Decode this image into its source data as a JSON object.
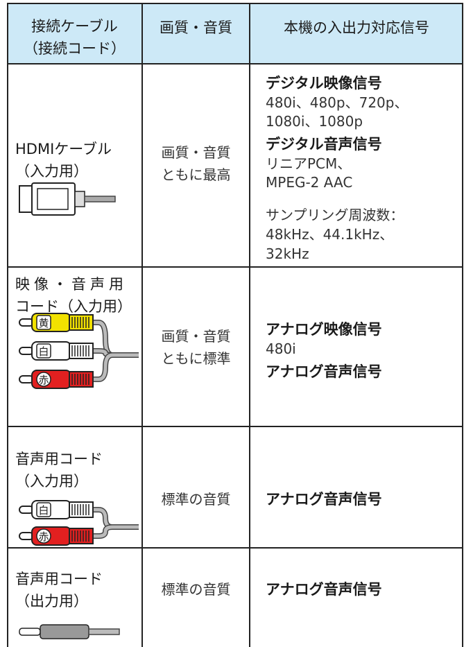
{
  "table": {
    "header": [
      [
        "接続ケーブル",
        "（接続コード）"
      ],
      [
        "画質・音質"
      ],
      [
        "本機の入出力対応信号"
      ]
    ],
    "rows": [
      {
        "cable": [
          "HDMIケーブル",
          "（入力用）"
        ],
        "quality": [
          "画質・音質",
          "ともに最高"
        ],
        "signals": [
          {
            "heading": "デジタル映像信号",
            "details": [
              "480i、480p、720p、",
              "1080i、1080p"
            ]
          },
          {
            "heading": "デジタル音声信号",
            "details": [
              "リニアPCM、",
              "MPEG-2 AAC"
            ]
          }
        ],
        "note": [
          "サンプリング周波数：",
          "48kHz、44.1kHz、",
          "32kHz"
        ]
      },
      {
        "cable": [
          "映像・音声用",
          "コード（入力用）"
        ],
        "plugs": [
          "黄",
          "白",
          "赤"
        ],
        "quality": [
          "画質・音質",
          "ともに標準"
        ],
        "signals": [
          {
            "heading": "アナログ映像信号",
            "details": [
              "480i"
            ]
          },
          {
            "heading": "アナログ音声信号"
          }
        ]
      },
      {
        "cable": [
          "音声用コード",
          "（入力用）"
        ],
        "plugs": [
          "白",
          "赤"
        ],
        "quality": [
          "標準の音質"
        ],
        "signals": [
          {
            "heading": "アナログ音声信号"
          }
        ]
      },
      {
        "cable": [
          "音声用コード",
          "（出力用）"
        ],
        "quality": [
          "標準の音質"
        ],
        "signals": [
          {
            "heading": "アナログ音声信号"
          }
        ]
      }
    ]
  }
}
